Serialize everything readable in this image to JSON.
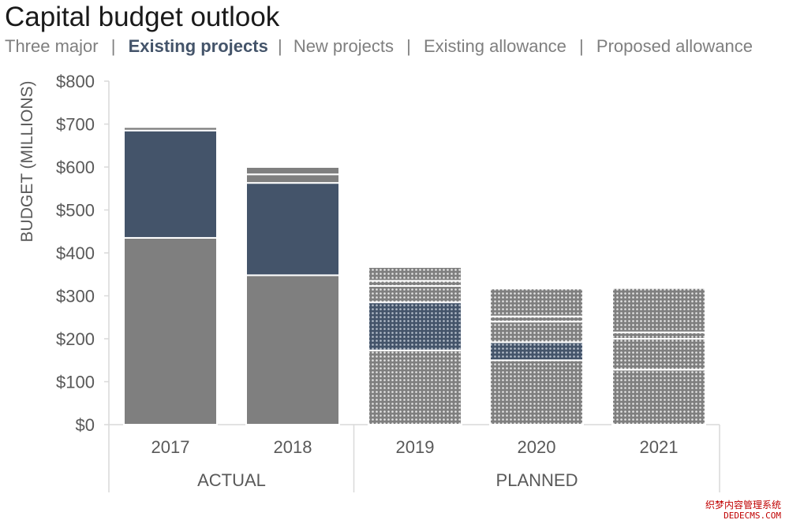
{
  "title": "Capital budget outlook",
  "legend": [
    {
      "label": "Three major",
      "active": false
    },
    {
      "label": "Existing projects",
      "active": true
    },
    {
      "label": "New projects",
      "active": false
    },
    {
      "label": "Existing allowance",
      "active": false
    },
    {
      "label": "Proposed allowance",
      "active": false
    }
  ],
  "legend_separator": "|",
  "colors": {
    "gray": "#7f7f7f",
    "navy": "#44546a",
    "text": "#595959",
    "axis": "#d9d9d9"
  },
  "chart_data": {
    "type": "bar",
    "stacked": true,
    "categories": [
      "2017",
      "2018",
      "2019",
      "2020",
      "2021"
    ],
    "groups": [
      {
        "label": "ACTUAL",
        "categories": [
          "2017",
          "2018"
        ],
        "pattern": "solid"
      },
      {
        "label": "PLANNED",
        "categories": [
          "2019",
          "2020",
          "2021"
        ],
        "pattern": "dotted"
      }
    ],
    "series": [
      {
        "name": "Three major",
        "color": "#7f7f7f",
        "values": [
          435,
          348,
          173,
          150,
          128
        ]
      },
      {
        "name": "Existing projects",
        "color": "#44546a",
        "values": [
          250,
          215,
          112,
          42,
          0
        ]
      },
      {
        "name": "New projects",
        "color": "#7f7f7f",
        "values": [
          0,
          0,
          38,
          48,
          72
        ]
      },
      {
        "name": "Existing allowance",
        "color": "#7f7f7f",
        "values": [
          0,
          20,
          12,
          12,
          15
        ]
      },
      {
        "name": "Proposed allowance",
        "color": "#7f7f7f",
        "values": [
          8,
          17,
          32,
          65,
          103
        ]
      }
    ],
    "ylabel": "BUDGET (MILLIONS)",
    "yticks": [
      "$0",
      "$100",
      "$200",
      "$300",
      "$400",
      "$500",
      "$600",
      "$700",
      "$800"
    ],
    "ylim": [
      0,
      800
    ],
    "xlabel": "",
    "grid": false
  },
  "watermark": {
    "line1": "织梦内容管理系统",
    "line2": "DEDECMS.COM"
  }
}
